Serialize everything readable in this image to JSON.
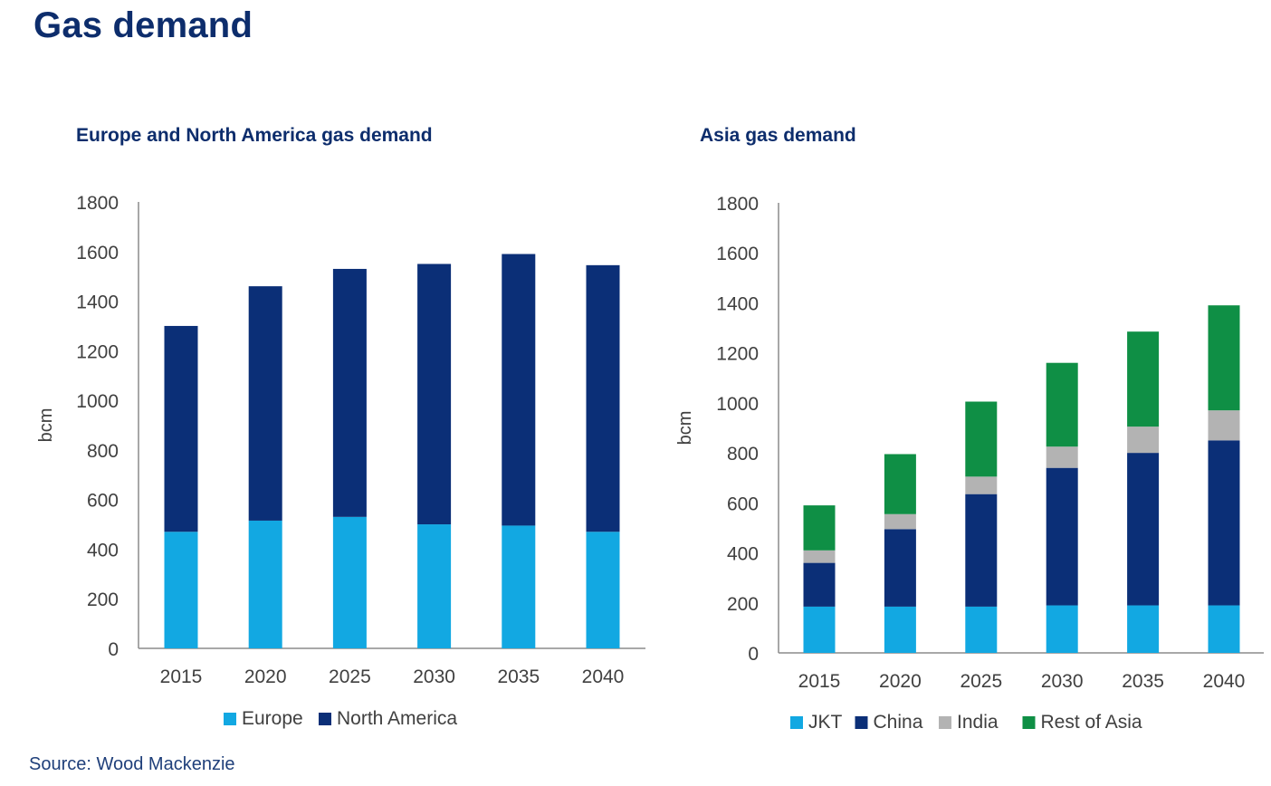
{
  "page": {
    "title": "Gas demand",
    "source": "Source: Wood Mackenzie"
  },
  "colors": {
    "title": "#0d2d6c",
    "Europe": "#12a8e2",
    "North America": "#0b2f77",
    "JKT": "#12a8e2",
    "China": "#0b2f77",
    "India": "#b3b3b3",
    "Rest of Asia": "#0f8f45"
  },
  "chart_data": [
    {
      "type": "bar",
      "stacked": true,
      "title": "Europe and North America gas demand",
      "categories": [
        "2015",
        "2020",
        "2025",
        "2030",
        "2035",
        "2040"
      ],
      "ylabel": "bcm",
      "xlabel": "",
      "ylim": [
        0,
        1800
      ],
      "yticks": [
        0,
        200,
        400,
        600,
        800,
        1000,
        1200,
        1400,
        1600,
        1800
      ],
      "legend_position": "bottom",
      "grid": false,
      "series": [
        {
          "name": "Europe",
          "values": [
            470,
            515,
            530,
            500,
            495,
            470
          ]
        },
        {
          "name": "North America",
          "values": [
            830,
            945,
            1000,
            1050,
            1095,
            1075
          ]
        }
      ]
    },
    {
      "type": "bar",
      "stacked": true,
      "title": "Asia gas demand",
      "categories": [
        "2015",
        "2020",
        "2025",
        "2030",
        "2035",
        "2040"
      ],
      "ylabel": "bcm",
      "xlabel": "",
      "ylim": [
        0,
        1800
      ],
      "yticks": [
        0,
        200,
        400,
        600,
        800,
        1000,
        1200,
        1400,
        1600,
        1800
      ],
      "legend_position": "bottom",
      "grid": false,
      "series": [
        {
          "name": "JKT",
          "values": [
            185,
            185,
            185,
            190,
            190,
            190
          ]
        },
        {
          "name": "China",
          "values": [
            175,
            310,
            450,
            550,
            610,
            660
          ]
        },
        {
          "name": "India",
          "values": [
            50,
            60,
            70,
            85,
            105,
            120
          ]
        },
        {
          "name": "Rest of Asia",
          "values": [
            180,
            240,
            300,
            335,
            380,
            420
          ]
        }
      ]
    }
  ]
}
